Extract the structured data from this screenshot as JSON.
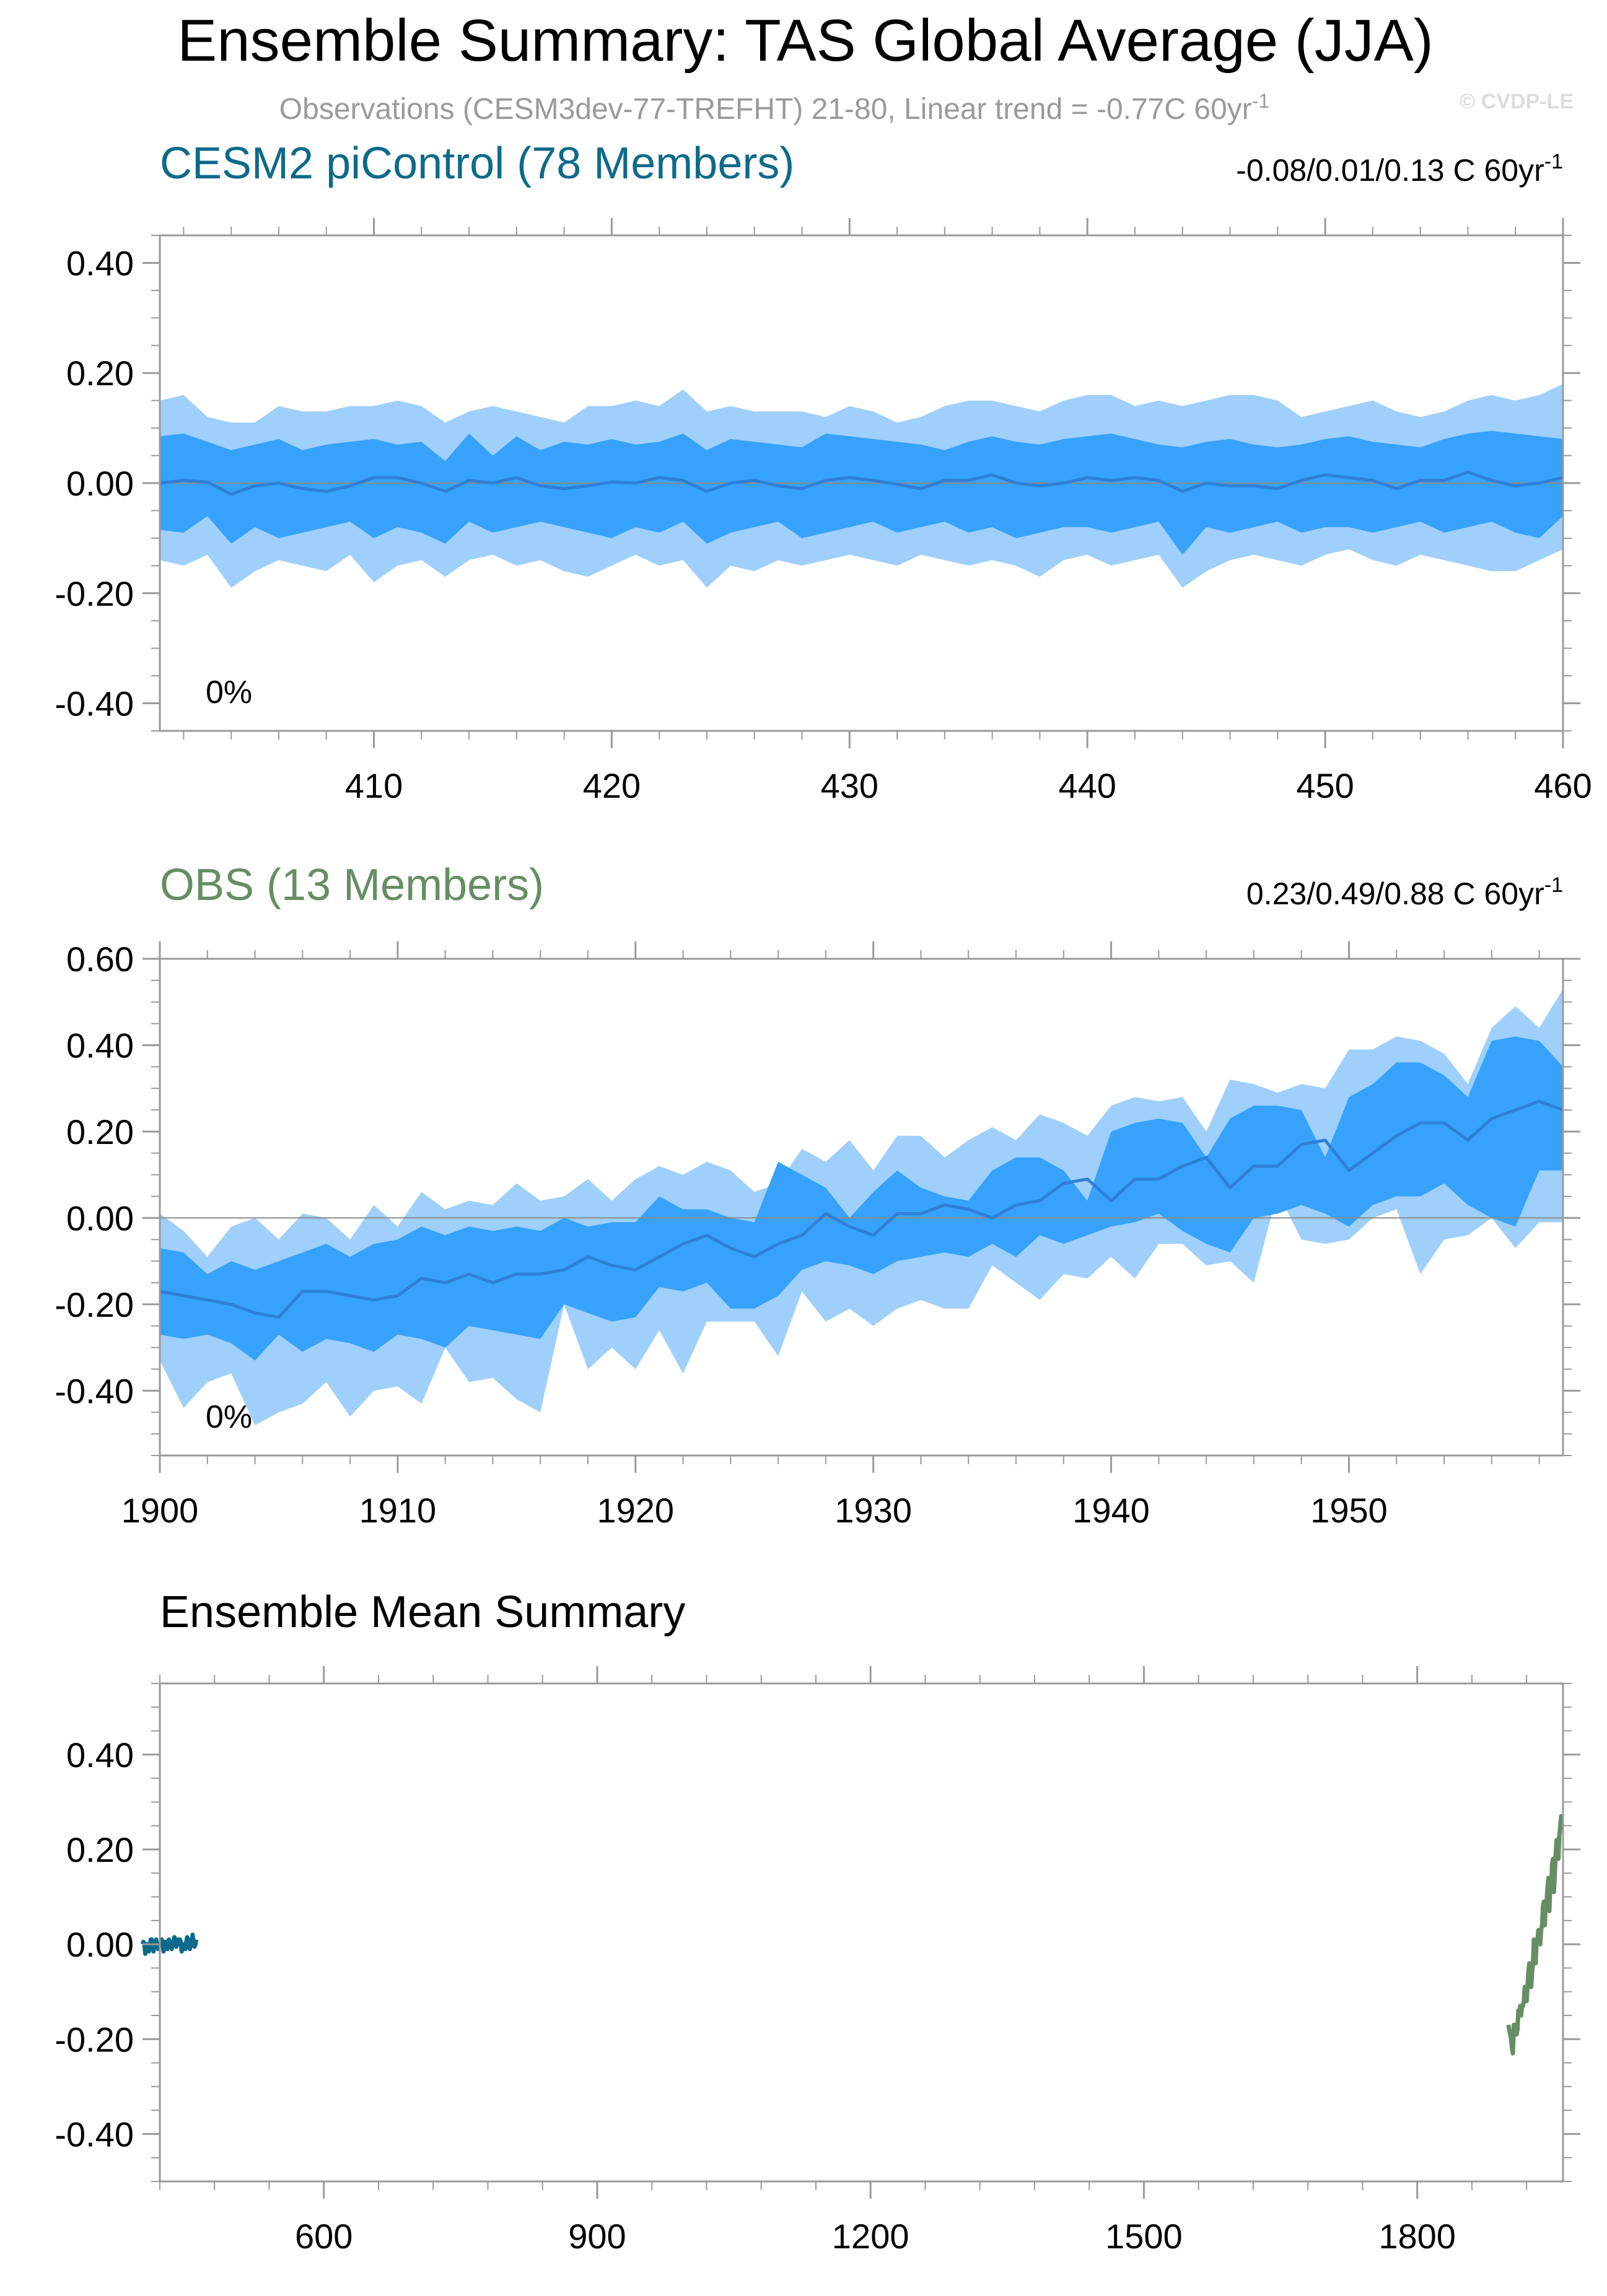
{
  "header": {
    "title": "Ensemble Summary: TAS Global Average (JJA)",
    "subtitle": "Observations (CESM3dev-77-TREFHT) 21-80, Linear trend = -0.77C 60yr",
    "subtitle_sup": "-1",
    "watermark": "© CVDP-LE"
  },
  "colors": {
    "band_outer": "#9FCFFB",
    "band_inner": "#36A2FB",
    "mean_line": "#2E7FD8",
    "picontrol": "#0D6A8A",
    "obs": "#658E63",
    "axis": "#9A9A9A",
    "text": "#000000",
    "subtitle": "#9A9A9A"
  },
  "chart_data": [
    {
      "id": "picontrol",
      "type": "area",
      "title": "CESM2 piControl (78 Members)",
      "trend_label": "-0.08/0.01/0.13 C 60yr",
      "trend_sup": "-1",
      "percent_label": "0%",
      "xlim": [
        401,
        460
      ],
      "ylim": [
        -0.45,
        0.45
      ],
      "xticks": [
        410,
        420,
        430,
        440,
        450,
        460
      ],
      "xtick_labels": [
        "410",
        "420",
        "430",
        "440",
        "450",
        "460"
      ],
      "yticks": [
        -0.4,
        -0.2,
        0.0,
        0.2,
        0.4
      ],
      "ytick_labels": [
        "-0.40",
        "-0.20",
        "0.00",
        "0.20",
        "0.40"
      ],
      "x": [
        401,
        402,
        403,
        404,
        405,
        406,
        407,
        408,
        409,
        410,
        411,
        412,
        413,
        414,
        415,
        416,
        417,
        418,
        419,
        420,
        421,
        422,
        423,
        424,
        425,
        426,
        427,
        428,
        429,
        430,
        431,
        432,
        433,
        434,
        435,
        436,
        437,
        438,
        439,
        440,
        441,
        442,
        443,
        444,
        445,
        446,
        447,
        448,
        449,
        450,
        451,
        452,
        453,
        454,
        455,
        456,
        457,
        458,
        459,
        460
      ],
      "mean": [
        0.0,
        0.005,
        0.002,
        -0.02,
        -0.005,
        0.0,
        -0.01,
        -0.015,
        -0.005,
        0.01,
        0.01,
        0.0,
        -0.015,
        0.005,
        0.0,
        0.01,
        -0.005,
        -0.01,
        -0.005,
        0.002,
        0.0,
        0.01,
        0.005,
        -0.015,
        0.0,
        0.005,
        -0.005,
        -0.01,
        0.005,
        0.01,
        0.005,
        -0.002,
        -0.01,
        0.005,
        0.005,
        0.015,
        0.0,
        -0.005,
        0.0,
        0.01,
        0.005,
        0.01,
        0.005,
        -0.015,
        0.0,
        -0.005,
        -0.005,
        -0.01,
        0.005,
        0.015,
        0.01,
        0.005,
        -0.01,
        0.005,
        0.005,
        0.02,
        0.005,
        -0.005,
        0.0,
        0.01
      ],
      "p10": [
        -0.085,
        -0.09,
        -0.06,
        -0.11,
        -0.08,
        -0.1,
        -0.09,
        -0.08,
        -0.07,
        -0.1,
        -0.08,
        -0.09,
        -0.11,
        -0.07,
        -0.09,
        -0.08,
        -0.07,
        -0.08,
        -0.09,
        -0.1,
        -0.08,
        -0.09,
        -0.07,
        -0.11,
        -0.09,
        -0.08,
        -0.07,
        -0.1,
        -0.09,
        -0.08,
        -0.07,
        -0.09,
        -0.08,
        -0.07,
        -0.09,
        -0.08,
        -0.1,
        -0.09,
        -0.08,
        -0.08,
        -0.09,
        -0.08,
        -0.07,
        -0.13,
        -0.08,
        -0.09,
        -0.08,
        -0.07,
        -0.09,
        -0.08,
        -0.08,
        -0.09,
        -0.08,
        -0.07,
        -0.09,
        -0.08,
        -0.07,
        -0.09,
        -0.1,
        -0.06
      ],
      "p90": [
        0.085,
        0.09,
        0.075,
        0.06,
        0.07,
        0.08,
        0.06,
        0.07,
        0.075,
        0.08,
        0.07,
        0.075,
        0.04,
        0.09,
        0.05,
        0.085,
        0.06,
        0.075,
        0.07,
        0.08,
        0.07,
        0.075,
        0.09,
        0.06,
        0.08,
        0.075,
        0.07,
        0.065,
        0.09,
        0.085,
        0.08,
        0.075,
        0.07,
        0.06,
        0.075,
        0.085,
        0.075,
        0.07,
        0.08,
        0.085,
        0.09,
        0.08,
        0.07,
        0.065,
        0.075,
        0.08,
        0.07,
        0.065,
        0.07,
        0.08,
        0.085,
        0.075,
        0.07,
        0.065,
        0.08,
        0.09,
        0.095,
        0.09,
        0.085,
        0.08
      ],
      "p2": [
        -0.14,
        -0.15,
        -0.13,
        -0.19,
        -0.16,
        -0.14,
        -0.15,
        -0.16,
        -0.13,
        -0.18,
        -0.15,
        -0.14,
        -0.17,
        -0.14,
        -0.13,
        -0.15,
        -0.14,
        -0.16,
        -0.17,
        -0.15,
        -0.13,
        -0.15,
        -0.14,
        -0.19,
        -0.15,
        -0.16,
        -0.14,
        -0.15,
        -0.14,
        -0.13,
        -0.14,
        -0.15,
        -0.13,
        -0.14,
        -0.15,
        -0.14,
        -0.15,
        -0.17,
        -0.14,
        -0.13,
        -0.15,
        -0.14,
        -0.13,
        -0.19,
        -0.16,
        -0.14,
        -0.13,
        -0.14,
        -0.15,
        -0.13,
        -0.12,
        -0.14,
        -0.15,
        -0.13,
        -0.14,
        -0.15,
        -0.16,
        -0.16,
        -0.14,
        -0.12
      ],
      "p98": [
        0.15,
        0.16,
        0.12,
        0.11,
        0.11,
        0.14,
        0.13,
        0.13,
        0.14,
        0.14,
        0.15,
        0.14,
        0.11,
        0.13,
        0.14,
        0.13,
        0.12,
        0.11,
        0.14,
        0.14,
        0.15,
        0.14,
        0.17,
        0.13,
        0.14,
        0.13,
        0.13,
        0.13,
        0.12,
        0.14,
        0.13,
        0.11,
        0.12,
        0.14,
        0.15,
        0.15,
        0.14,
        0.13,
        0.15,
        0.16,
        0.16,
        0.14,
        0.15,
        0.14,
        0.15,
        0.16,
        0.16,
        0.15,
        0.12,
        0.13,
        0.14,
        0.15,
        0.13,
        0.12,
        0.13,
        0.15,
        0.16,
        0.15,
        0.16,
        0.18
      ]
    },
    {
      "id": "obs",
      "type": "area",
      "title": "OBS (13 Members)",
      "trend_label": "0.23/0.49/0.88 C 60yr",
      "trend_sup": "-1",
      "percent_label": "0%",
      "xlim": [
        1900,
        1959
      ],
      "ylim": [
        -0.55,
        0.6
      ],
      "xticks": [
        1900,
        1910,
        1920,
        1930,
        1940,
        1950
      ],
      "xtick_labels": [
        "1900",
        "1910",
        "1920",
        "1930",
        "1940",
        "1950"
      ],
      "yticks": [
        -0.4,
        -0.2,
        0.0,
        0.2,
        0.4,
        0.6
      ],
      "ytick_labels": [
        "-0.40",
        "-0.20",
        "0.00",
        "0.20",
        "0.40",
        "0.60"
      ],
      "x": [
        1900,
        1901,
        1902,
        1903,
        1904,
        1905,
        1906,
        1907,
        1908,
        1909,
        1910,
        1911,
        1912,
        1913,
        1914,
        1915,
        1916,
        1917,
        1918,
        1919,
        1920,
        1921,
        1922,
        1923,
        1924,
        1925,
        1926,
        1927,
        1928,
        1929,
        1930,
        1931,
        1932,
        1933,
        1934,
        1935,
        1936,
        1937,
        1938,
        1939,
        1940,
        1941,
        1942,
        1943,
        1944,
        1945,
        1946,
        1947,
        1948,
        1949,
        1950,
        1951,
        1952,
        1953,
        1954,
        1955,
        1956,
        1957,
        1958,
        1959
      ],
      "mean": [
        -0.17,
        -0.18,
        -0.19,
        -0.2,
        -0.22,
        -0.23,
        -0.17,
        -0.17,
        -0.18,
        -0.19,
        -0.18,
        -0.14,
        -0.15,
        -0.13,
        -0.15,
        -0.13,
        -0.13,
        -0.12,
        -0.09,
        -0.11,
        -0.12,
        -0.09,
        -0.06,
        -0.04,
        -0.07,
        -0.09,
        -0.06,
        -0.04,
        0.01,
        -0.02,
        -0.04,
        0.01,
        0.01,
        0.03,
        0.02,
        0.0,
        0.03,
        0.04,
        0.08,
        0.09,
        0.04,
        0.09,
        0.09,
        0.12,
        0.14,
        0.07,
        0.12,
        0.12,
        0.17,
        0.18,
        0.11,
        0.15,
        0.19,
        0.22,
        0.22,
        0.18,
        0.23,
        0.25,
        0.27,
        0.25
      ],
      "p10": [
        -0.27,
        -0.28,
        -0.27,
        -0.29,
        -0.33,
        -0.27,
        -0.31,
        -0.28,
        -0.29,
        -0.31,
        -0.27,
        -0.28,
        -0.3,
        -0.25,
        -0.26,
        -0.27,
        -0.28,
        -0.2,
        -0.22,
        -0.24,
        -0.23,
        -0.16,
        -0.17,
        -0.15,
        -0.21,
        -0.21,
        -0.18,
        -0.12,
        -0.1,
        -0.11,
        -0.13,
        -0.1,
        -0.09,
        -0.08,
        -0.09,
        -0.06,
        -0.09,
        -0.04,
        -0.06,
        -0.04,
        -0.02,
        -0.01,
        0.01,
        -0.03,
        -0.06,
        -0.08,
        0.0,
        0.01,
        0.03,
        0.01,
        -0.02,
        0.03,
        0.05,
        0.05,
        0.08,
        0.03,
        0.0,
        -0.02,
        0.11,
        0.11
      ],
      "p90": [
        -0.07,
        -0.08,
        -0.13,
        -0.1,
        -0.12,
        -0.1,
        -0.08,
        -0.06,
        -0.09,
        -0.06,
        -0.05,
        -0.02,
        -0.04,
        -0.02,
        -0.03,
        -0.02,
        -0.03,
        0.0,
        -0.02,
        -0.01,
        -0.01,
        0.05,
        0.02,
        0.02,
        0.0,
        -0.01,
        0.13,
        0.1,
        0.07,
        0.0,
        0.06,
        0.11,
        0.07,
        0.05,
        0.04,
        0.11,
        0.14,
        0.14,
        0.11,
        0.04,
        0.2,
        0.22,
        0.23,
        0.22,
        0.14,
        0.23,
        0.26,
        0.26,
        0.25,
        0.14,
        0.28,
        0.31,
        0.36,
        0.36,
        0.33,
        0.28,
        0.41,
        0.42,
        0.41,
        0.35
      ],
      "p2": [
        -0.33,
        -0.44,
        -0.38,
        -0.36,
        -0.48,
        -0.45,
        -0.43,
        -0.38,
        -0.46,
        -0.4,
        -0.39,
        -0.43,
        -0.3,
        -0.38,
        -0.37,
        -0.42,
        -0.45,
        -0.2,
        -0.35,
        -0.3,
        -0.35,
        -0.26,
        -0.36,
        -0.24,
        -0.24,
        -0.24,
        -0.32,
        -0.17,
        -0.24,
        -0.21,
        -0.25,
        -0.21,
        -0.19,
        -0.21,
        -0.21,
        -0.11,
        -0.15,
        -0.19,
        -0.13,
        -0.14,
        -0.09,
        -0.14,
        -0.06,
        -0.06,
        -0.11,
        -0.1,
        -0.15,
        0.06,
        -0.05,
        -0.06,
        -0.05,
        0.0,
        0.02,
        -0.13,
        -0.05,
        -0.04,
        0.0,
        -0.07,
        -0.01,
        -0.01
      ],
      "p98": [
        0.01,
        -0.03,
        -0.09,
        -0.02,
        0.0,
        -0.05,
        0.01,
        0.0,
        -0.05,
        0.03,
        -0.02,
        0.06,
        0.02,
        0.04,
        0.03,
        0.08,
        0.04,
        0.05,
        0.09,
        0.04,
        0.09,
        0.12,
        0.1,
        0.13,
        0.11,
        0.06,
        0.08,
        0.16,
        0.13,
        0.18,
        0.11,
        0.19,
        0.19,
        0.14,
        0.18,
        0.21,
        0.18,
        0.24,
        0.22,
        0.19,
        0.26,
        0.28,
        0.27,
        0.28,
        0.2,
        0.32,
        0.31,
        0.29,
        0.31,
        0.3,
        0.39,
        0.39,
        0.42,
        0.41,
        0.38,
        0.31,
        0.44,
        0.49,
        0.44,
        0.53
      ]
    },
    {
      "id": "ensemble-mean",
      "type": "line",
      "title": "Ensemble Mean Summary",
      "xlim": [
        420,
        1960
      ],
      "ylim": [
        -0.5,
        0.55
      ],
      "xticks": [
        600,
        900,
        1200,
        1500,
        1800
      ],
      "xtick_labels": [
        "600",
        "900",
        "1200",
        "1500",
        "1800"
      ],
      "yticks": [
        -0.4,
        -0.2,
        0.0,
        0.2,
        0.4
      ],
      "ytick_labels": [
        "-0.40",
        "-0.20",
        "0.00",
        "0.20",
        "0.40"
      ],
      "series": [
        {
          "name": "CESM2 piControl",
          "color": "#0D6A8A",
          "x_start": 401,
          "x_step": 1,
          "values": [
            0.0,
            0.005,
            0.002,
            -0.02,
            -0.005,
            0.0,
            -0.01,
            -0.015,
            -0.005,
            0.01,
            0.01,
            0.0,
            -0.015,
            0.005,
            0.0,
            0.01,
            -0.005,
            -0.01,
            -0.005,
            0.002,
            0.0,
            0.01,
            0.005,
            -0.015,
            0.0,
            0.005,
            -0.005,
            -0.01,
            0.005,
            0.01,
            0.005,
            -0.002,
            -0.01,
            0.005,
            0.005,
            0.015,
            0.0,
            -0.005,
            0.0,
            0.01,
            0.005,
            0.01,
            0.005,
            -0.015,
            0.0,
            -0.005,
            -0.005,
            -0.01,
            0.005,
            0.015,
            0.01,
            0.005,
            -0.01,
            0.005,
            0.005,
            0.02,
            0.005,
            -0.005,
            0.0,
            0.01
          ]
        },
        {
          "name": "OBS",
          "color": "#658E63",
          "x_start": 1900,
          "x_step": 1,
          "values": [
            -0.17,
            -0.18,
            -0.19,
            -0.2,
            -0.22,
            -0.23,
            -0.17,
            -0.17,
            -0.18,
            -0.19,
            -0.18,
            -0.14,
            -0.15,
            -0.13,
            -0.15,
            -0.13,
            -0.13,
            -0.12,
            -0.09,
            -0.11,
            -0.12,
            -0.09,
            -0.06,
            -0.04,
            -0.07,
            -0.09,
            -0.06,
            -0.04,
            0.01,
            -0.02,
            -0.04,
            0.01,
            0.01,
            0.03,
            0.02,
            0.0,
            0.03,
            0.04,
            0.08,
            0.09,
            0.04,
            0.09,
            0.09,
            0.12,
            0.14,
            0.07,
            0.12,
            0.12,
            0.17,
            0.18,
            0.11,
            0.15,
            0.19,
            0.22,
            0.22,
            0.18,
            0.23,
            0.25,
            0.27,
            0.25
          ]
        }
      ]
    }
  ]
}
